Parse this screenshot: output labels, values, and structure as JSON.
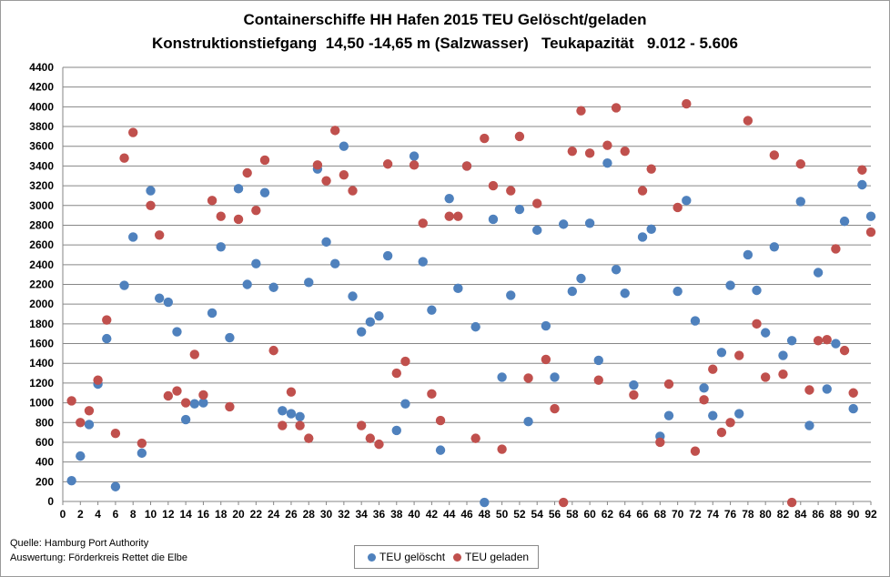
{
  "chart_data": {
    "type": "scatter",
    "title": "Containerschiffe HH Hafen 2015 TEU Gelöscht/geladen",
    "subtitle": "Konstruktionstiefgang  14,50 -14,65 m (Salzwasser)   Teukapazität   9.012 - 5.606",
    "xlabel": "",
    "ylabel": "",
    "xlim": [
      0,
      92
    ],
    "ylim": [
      0,
      4400
    ],
    "xticks": [
      0,
      2,
      4,
      6,
      8,
      10,
      12,
      14,
      16,
      18,
      20,
      22,
      24,
      26,
      28,
      30,
      32,
      34,
      36,
      38,
      40,
      42,
      44,
      46,
      48,
      50,
      52,
      54,
      56,
      58,
      60,
      62,
      64,
      66,
      68,
      70,
      72,
      74,
      76,
      78,
      80,
      82,
      84,
      86,
      88,
      90,
      92
    ],
    "yticks": [
      0,
      200,
      400,
      600,
      800,
      1000,
      1200,
      1400,
      1600,
      1800,
      2000,
      2200,
      2400,
      2600,
      2800,
      3000,
      3200,
      3400,
      3600,
      3800,
      4000,
      4200,
      4400
    ],
    "grid": true,
    "legend_position": "bottom",
    "series": [
      {
        "name": "TEU gelöscht",
        "color": "#4f81bd",
        "x": [
          1,
          2,
          3,
          4,
          5,
          6,
          7,
          8,
          9,
          10,
          11,
          12,
          13,
          14,
          15,
          16,
          17,
          18,
          19,
          20,
          21,
          22,
          23,
          24,
          25,
          26,
          27,
          28,
          29,
          30,
          31,
          32,
          33,
          34,
          35,
          36,
          37,
          38,
          39,
          40,
          41,
          42,
          43,
          44,
          45,
          46,
          47,
          48,
          49,
          50,
          51,
          52,
          53,
          54,
          55,
          56,
          57,
          58,
          59,
          60,
          61,
          62,
          63,
          64,
          65,
          66,
          67,
          68,
          69,
          70,
          71,
          72,
          73,
          74,
          75,
          76,
          77,
          78,
          79,
          80,
          81,
          82,
          83,
          84,
          85,
          86,
          87,
          88,
          89,
          90,
          91,
          92
        ],
        "y": [
          210,
          460,
          780,
          1190,
          1650,
          150,
          2190,
          2680,
          490,
          3150,
          2060,
          2020,
          1720,
          830,
          990,
          1000,
          1910,
          2580,
          1660,
          3170,
          2200,
          2410,
          3130,
          2170,
          920,
          890,
          860,
          2220,
          3370,
          2630,
          2410,
          3600,
          2080,
          1720,
          1820,
          1880,
          2490,
          720,
          990,
          3500,
          2430,
          1940,
          520,
          3070,
          2160,
          3400,
          1770,
          -10,
          2860,
          1260,
          2090,
          2960,
          810,
          2750,
          1780,
          1260,
          2810,
          2130,
          2260,
          2820,
          1430,
          3430,
          2350,
          2110,
          1180,
          2680,
          2760,
          660,
          870,
          2130,
          3050,
          1830,
          1150,
          870,
          1510,
          2190,
          890,
          2500,
          2140,
          1710,
          2580,
          1480,
          1630,
          3040,
          770,
          2320,
          1140,
          1600,
          2840,
          940,
          3210,
          2890
        ]
      },
      {
        "name": "TEU geladen",
        "color": "#c0504d",
        "x": [
          1,
          2,
          3,
          4,
          5,
          6,
          7,
          8,
          9,
          10,
          11,
          12,
          13,
          14,
          15,
          16,
          17,
          18,
          19,
          20,
          21,
          22,
          23,
          24,
          25,
          26,
          27,
          28,
          29,
          30,
          31,
          32,
          33,
          34,
          35,
          36,
          37,
          38,
          39,
          40,
          41,
          42,
          43,
          44,
          45,
          46,
          47,
          48,
          49,
          50,
          51,
          52,
          53,
          54,
          55,
          56,
          57,
          58,
          59,
          60,
          61,
          62,
          63,
          64,
          65,
          66,
          67,
          68,
          69,
          70,
          71,
          72,
          73,
          74,
          75,
          76,
          77,
          78,
          79,
          80,
          81,
          82,
          83,
          84,
          85,
          86,
          87,
          88,
          89,
          90,
          91,
          92
        ],
        "y": [
          1020,
          800,
          920,
          1230,
          1840,
          690,
          3480,
          3740,
          590,
          3000,
          2700,
          1070,
          1120,
          1000,
          1490,
          1080,
          3050,
          2890,
          960,
          2860,
          3330,
          2950,
          3460,
          1530,
          770,
          1110,
          770,
          640,
          3410,
          3250,
          3760,
          3310,
          3150,
          770,
          640,
          580,
          3420,
          1300,
          1420,
          3410,
          2820,
          1090,
          820,
          2890,
          2890,
          3400,
          640,
          3680,
          3200,
          530,
          3150,
          3700,
          1250,
          3020,
          1440,
          940,
          -10,
          3550,
          3960,
          3530,
          1230,
          3610,
          3990,
          3550,
          1080,
          3150,
          3370,
          600,
          1190,
          2980,
          4030,
          510,
          1030,
          1340,
          700,
          800,
          1480,
          3860,
          1800,
          1260,
          3510,
          1290,
          -10,
          3420,
          1130,
          1630,
          1640,
          2560,
          1530,
          1100,
          3360,
          2730
        ]
      }
    ]
  },
  "footer": {
    "source_line": "Quelle: Hamburg Port Authority",
    "analysis_line": "Auswertung: Förderkreis Rettet die Elbe"
  }
}
